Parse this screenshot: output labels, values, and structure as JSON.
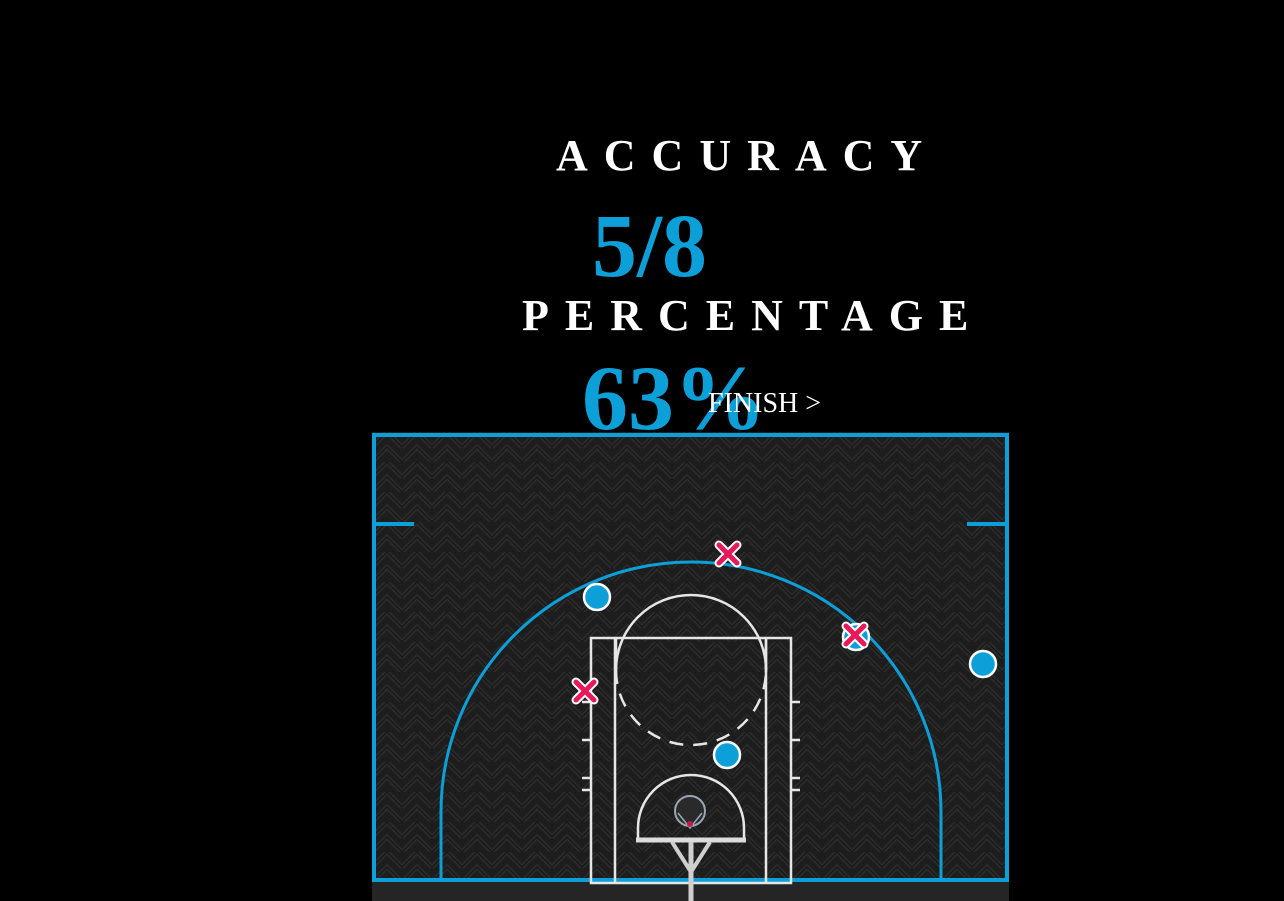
{
  "stats": {
    "accuracy_label": "ACCURACY",
    "accuracy_value": "5/8",
    "percentage_label": "PERCENTAGE",
    "percentage_value": "63%"
  },
  "finish_label": "FINISH >",
  "colors": {
    "background": "#000000",
    "accent": "#0d9fd8",
    "miss": "#e8195a",
    "court_floor": "#1c1c1c",
    "court_line": "#e6e6e6"
  },
  "court": {
    "icons": {
      "made": "made-shot-circle-icon",
      "missed": "missed-shot-x-icon",
      "hoop": "basketball-hoop-icon"
    }
  }
}
